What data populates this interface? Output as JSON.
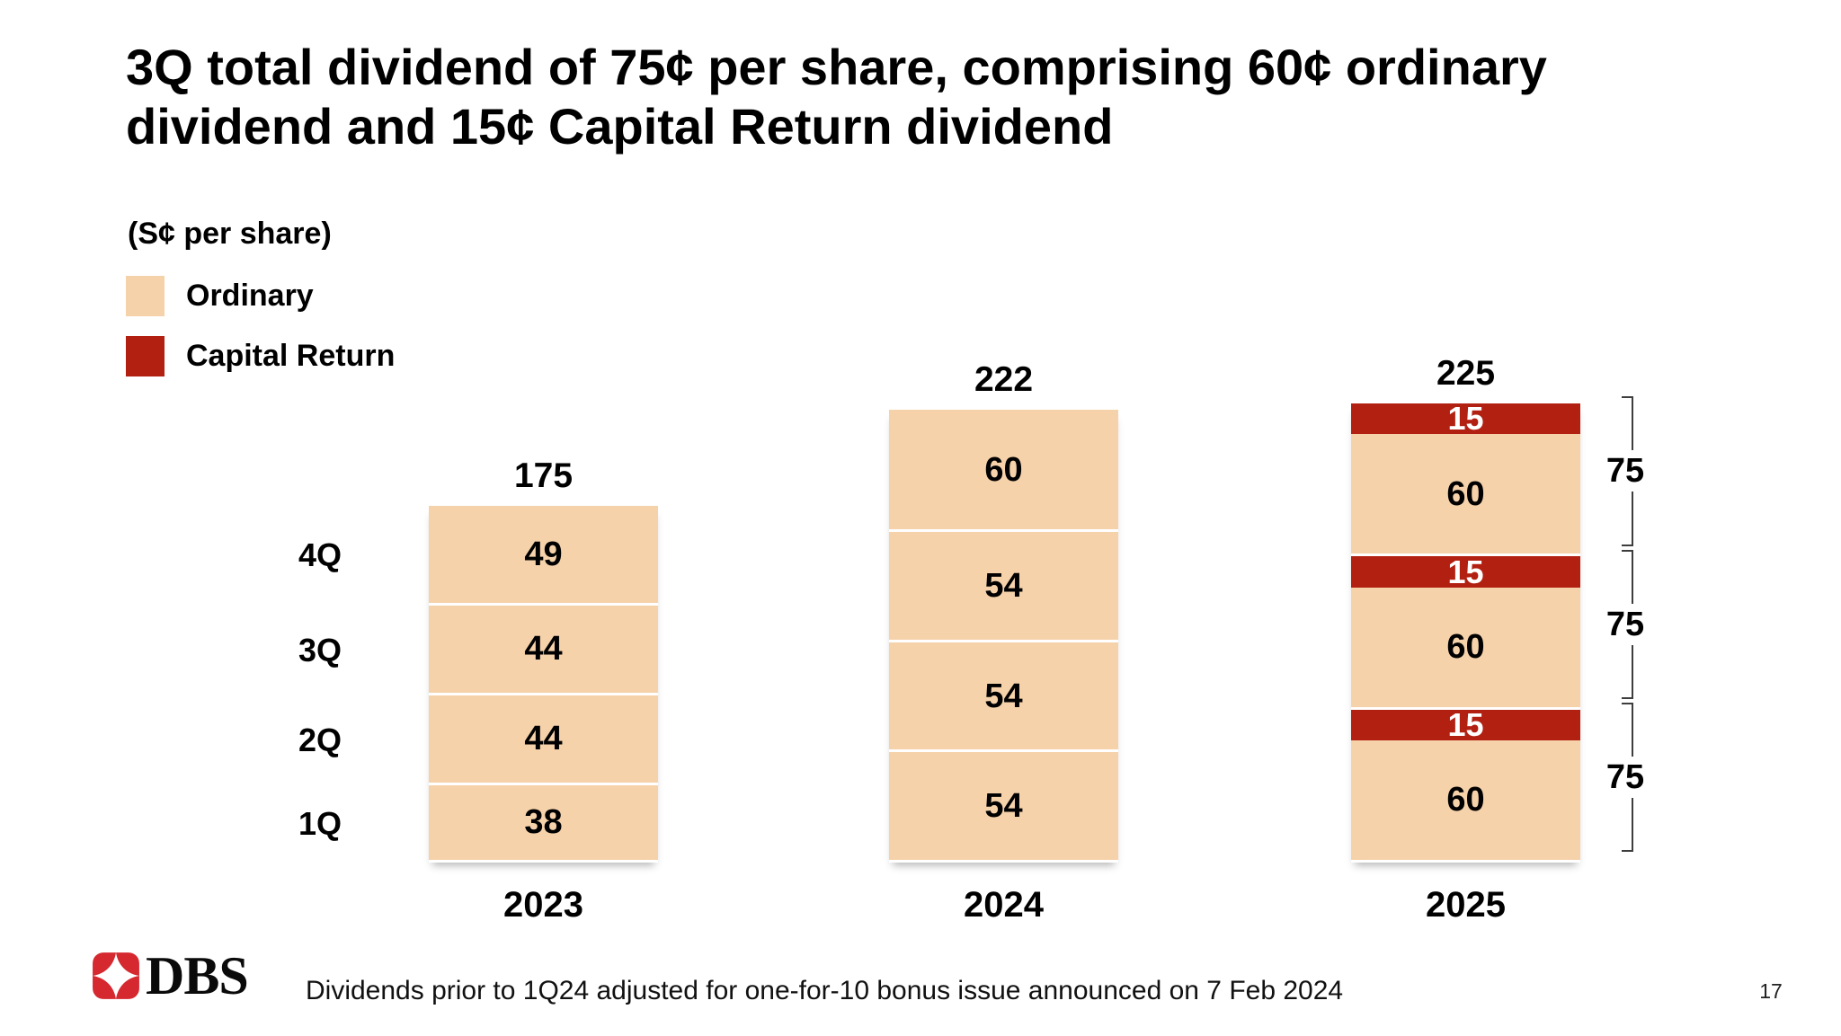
{
  "slide": {
    "title_lines": [
      "3Q total dividend of 75¢ per share, comprising 60¢ ordinary",
      "dividend and 15¢ Capital Return dividend"
    ],
    "title_full": "3Q total dividend of 75¢ per share, comprising 60¢ ordinary dividend and 15¢ Capital Return dividend",
    "footnote": "Dividends prior to 1Q24 adjusted for one-for-10 bonus issue announced on 7 Feb 2024",
    "page_number": "17",
    "logo_text": "DBS"
  },
  "legend": {
    "axis_label": "(S¢ per share)",
    "items": [
      {
        "label": "Ordinary",
        "series": "ordinary",
        "color": "#F6D2AA"
      },
      {
        "label": "Capital Return",
        "series": "capital",
        "color": "#B22012"
      }
    ]
  },
  "chart_data": {
    "type": "bar",
    "stacked": true,
    "unit_label": "(S¢ per share)",
    "categories": [
      "2023",
      "2024",
      "2025"
    ],
    "colors": {
      "ordinary": "#F6D2AA",
      "capital": "#B22012"
    },
    "legend_position": "top-left",
    "grid": false,
    "bars": [
      {
        "year": "2023",
        "total": "175",
        "segments": [
          {
            "q": "4Q",
            "series": "ordinary",
            "value": 49
          },
          {
            "q": "3Q",
            "series": "ordinary",
            "value": 44
          },
          {
            "q": "2Q",
            "series": "ordinary",
            "value": 44
          },
          {
            "q": "1Q",
            "series": "ordinary",
            "value": 38
          }
        ]
      },
      {
        "year": "2024",
        "total": "222",
        "segments": [
          {
            "series": "ordinary",
            "value": 60
          },
          {
            "series": "ordinary",
            "value": 54
          },
          {
            "series": "ordinary",
            "value": 54
          },
          {
            "series": "ordinary",
            "value": 54
          }
        ]
      },
      {
        "year": "2025",
        "total": "225",
        "segments": [
          {
            "series": "capital",
            "value": 15
          },
          {
            "series": "ordinary",
            "value": 60
          },
          {
            "series": "capital",
            "value": 15
          },
          {
            "series": "ordinary",
            "value": 60
          },
          {
            "series": "capital",
            "value": 15
          },
          {
            "series": "ordinary",
            "value": 60
          }
        ],
        "group_annotations": [
          {
            "span": [
              0,
              1
            ],
            "label": "75"
          },
          {
            "span": [
              2,
              3
            ],
            "label": "75"
          },
          {
            "span": [
              4,
              5
            ],
            "label": "75"
          }
        ]
      }
    ]
  }
}
